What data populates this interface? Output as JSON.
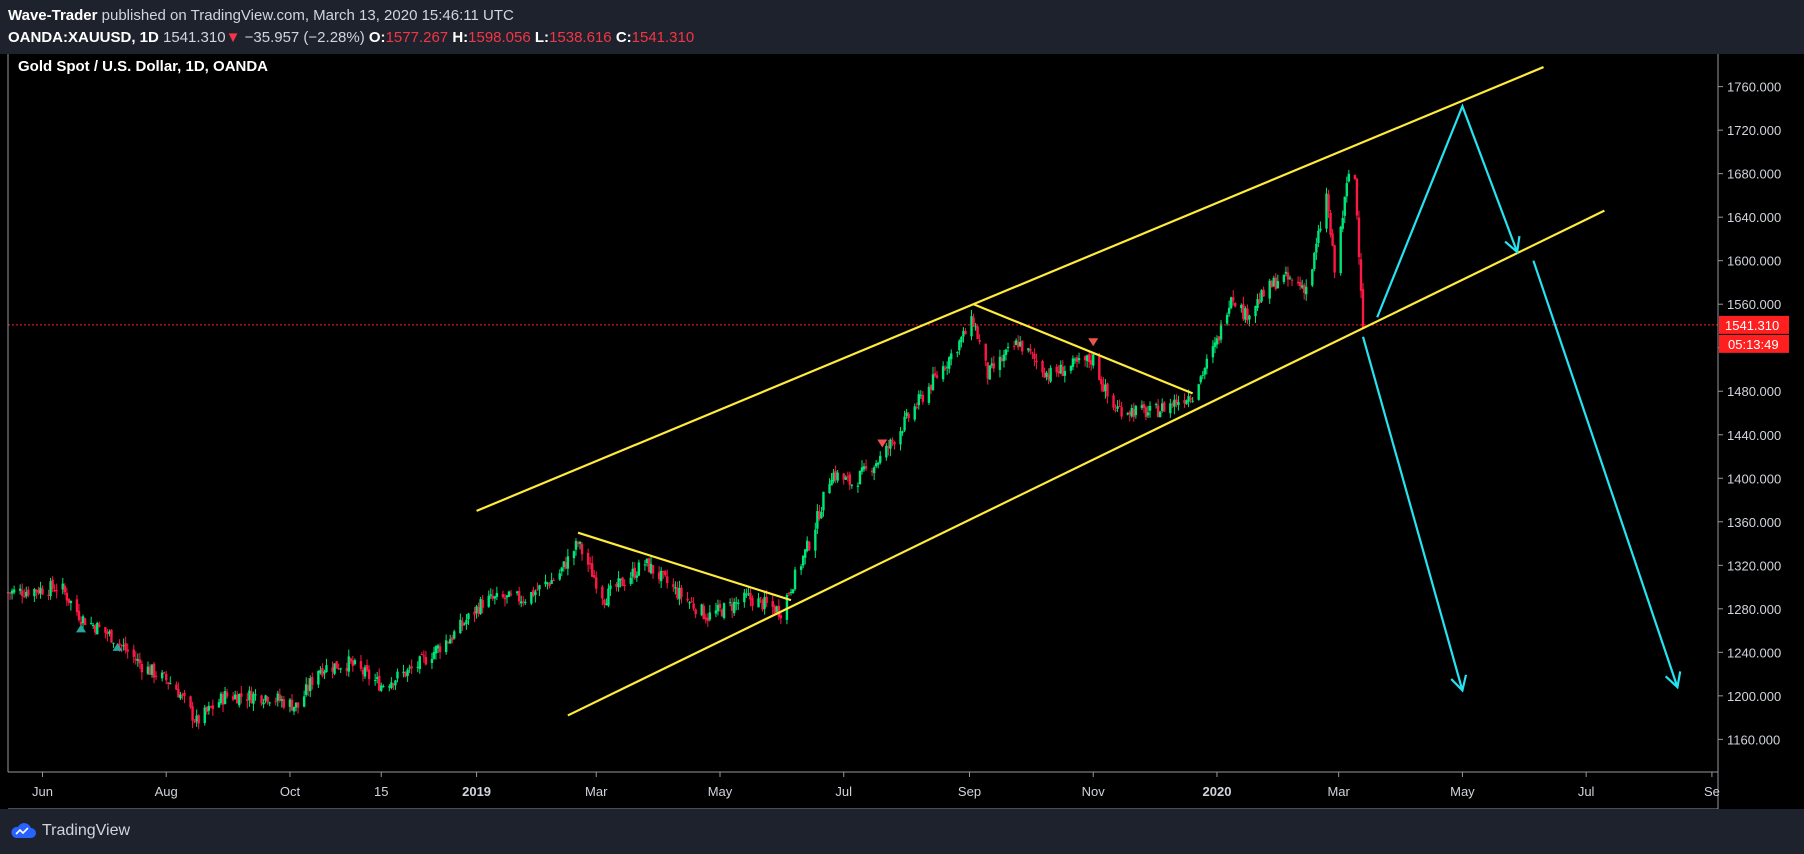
{
  "header": {
    "author": "Wave-Trader",
    "published_text": "published on TradingView.com, March 13, 2020 15:46:11 UTC",
    "symbol_label": "OANDA:XAUUSD, 1D",
    "last_price": "1541.310",
    "change": "−35.957 (−2.28%)",
    "open_label": "O:",
    "open": "1577.267",
    "high_label": "H:",
    "high": "1598.056",
    "low_label": "L:",
    "low": "1538.616",
    "close_label": "C:",
    "close": "1541.310"
  },
  "footer": {
    "brand": "TradingView"
  },
  "colors": {
    "up": "#00e676",
    "down": "#ff1744",
    "trendline": "#ffeb3b",
    "arrow": "#26e3f2",
    "price_line": "#ff1f1f",
    "background": "#000000",
    "axis_text": "#d1d4dc"
  },
  "chart_data": {
    "type": "candlestick",
    "title": "Gold Spot / U.S. Dollar, 1D, OANDA",
    "ylim": [
      1130,
      1790
    ],
    "y_ticks": [
      1160,
      1200,
      1240,
      1280,
      1320,
      1360,
      1400,
      1440,
      1480,
      1520,
      1560,
      1600,
      1640,
      1680,
      1720,
      1760
    ],
    "y_tick_labels": [
      "1160.000",
      "1200.000",
      "1240.000",
      "1280.000",
      "1320.000",
      "1360.000",
      "1400.000",
      "1440.000",
      "1480.000",
      "1520.000",
      "1560.000",
      "1600.000",
      "1640.000",
      "1680.000",
      "1720.000",
      "1760.000"
    ],
    "x_ticks": [
      {
        "date": "2018-06-01",
        "label": "Jun"
      },
      {
        "date": "2018-08-01",
        "label": "Aug"
      },
      {
        "date": "2018-10-01",
        "label": "Oct"
      },
      {
        "date": "2018-11-15",
        "label": "15"
      },
      {
        "date": "2019-01-01",
        "label": "2019"
      },
      {
        "date": "2019-03-01",
        "label": "Mar"
      },
      {
        "date": "2019-05-01",
        "label": "May"
      },
      {
        "date": "2019-07-01",
        "label": "Jul"
      },
      {
        "date": "2019-09-01",
        "label": "Sep"
      },
      {
        "date": "2019-11-01",
        "label": "Nov"
      },
      {
        "date": "2020-01-01",
        "label": "2020"
      },
      {
        "date": "2020-03-01",
        "label": "Mar"
      },
      {
        "date": "2020-05-01",
        "label": "May"
      },
      {
        "date": "2020-07-01",
        "label": "Jul"
      },
      {
        "date": "2020-09-01",
        "label": "Se"
      }
    ],
    "path": [
      [
        "2018-05-15",
        1295
      ],
      [
        "2018-06-10",
        1300
      ],
      [
        "2018-06-20",
        1272
      ],
      [
        "2018-07-05",
        1255
      ],
      [
        "2018-07-20",
        1228
      ],
      [
        "2018-08-05",
        1210
      ],
      [
        "2018-08-16",
        1176
      ],
      [
        "2018-08-30",
        1200
      ],
      [
        "2018-09-20",
        1200
      ],
      [
        "2018-10-05",
        1190
      ],
      [
        "2018-10-15",
        1225
      ],
      [
        "2018-10-30",
        1230
      ],
      [
        "2018-11-15",
        1210
      ],
      [
        "2018-12-01",
        1225
      ],
      [
        "2018-12-20",
        1255
      ],
      [
        "2019-01-05",
        1288
      ],
      [
        "2019-01-25",
        1290
      ],
      [
        "2019-02-10",
        1310
      ],
      [
        "2019-02-20",
        1340
      ],
      [
        "2019-03-05",
        1290
      ],
      [
        "2019-03-25",
        1322
      ],
      [
        "2019-04-10",
        1295
      ],
      [
        "2019-04-25",
        1273
      ],
      [
        "2019-05-15",
        1290
      ],
      [
        "2019-05-31",
        1278
      ],
      [
        "2019-06-15",
        1345
      ],
      [
        "2019-06-25",
        1405
      ],
      [
        "2019-07-05",
        1395
      ],
      [
        "2019-07-20",
        1420
      ],
      [
        "2019-08-05",
        1465
      ],
      [
        "2019-08-20",
        1505
      ],
      [
        "2019-09-03",
        1545
      ],
      [
        "2019-09-10",
        1495
      ],
      [
        "2019-09-25",
        1525
      ],
      [
        "2019-10-10",
        1495
      ],
      [
        "2019-11-01",
        1510
      ],
      [
        "2019-11-10",
        1465
      ],
      [
        "2019-11-30",
        1460
      ],
      [
        "2019-12-20",
        1478
      ],
      [
        "2020-01-01",
        1525
      ],
      [
        "2020-01-08",
        1570
      ],
      [
        "2020-01-15",
        1550
      ],
      [
        "2020-02-01",
        1585
      ],
      [
        "2020-02-15",
        1575
      ],
      [
        "2020-02-24",
        1660
      ],
      [
        "2020-02-28",
        1590
      ],
      [
        "2020-03-06",
        1680
      ],
      [
        "2020-03-09",
        1675
      ],
      [
        "2020-03-12",
        1577
      ],
      [
        "2020-03-13",
        1541
      ]
    ],
    "last_price_label": "1541.310",
    "countdown_label": "05:13:49",
    "markers": [
      {
        "date": "2018-06-20",
        "price": 1262,
        "type": "up"
      },
      {
        "date": "2018-07-08",
        "price": 1245,
        "type": "up"
      },
      {
        "date": "2019-07-20",
        "price": 1432,
        "type": "down"
      },
      {
        "date": "2019-11-01",
        "price": 1525,
        "type": "down"
      }
    ],
    "drawings": {
      "channel_upper": [
        [
          "2019-01-01",
          1370
        ],
        [
          "2020-06-10",
          1778
        ]
      ],
      "channel_lower": [
        [
          "2019-02-15",
          1182
        ],
        [
          "2020-07-10",
          1646
        ]
      ],
      "wedge_1": [
        [
          "2019-02-20",
          1350
        ],
        [
          "2019-06-05",
          1288
        ]
      ],
      "wedge_2": [
        [
          "2019-09-03",
          1560
        ],
        [
          "2019-12-20",
          1478
        ]
      ],
      "arrows": [
        [
          [
            "2020-03-20",
            1548
          ],
          [
            "2020-05-01",
            1742
          ],
          [
            "2020-05-28",
            1608
          ]
        ],
        [
          [
            "2020-03-13",
            1530
          ],
          [
            "2020-05-01",
            1205
          ]
        ],
        [
          [
            "2020-06-05",
            1600
          ],
          [
            "2020-08-15",
            1208
          ]
        ]
      ]
    }
  }
}
